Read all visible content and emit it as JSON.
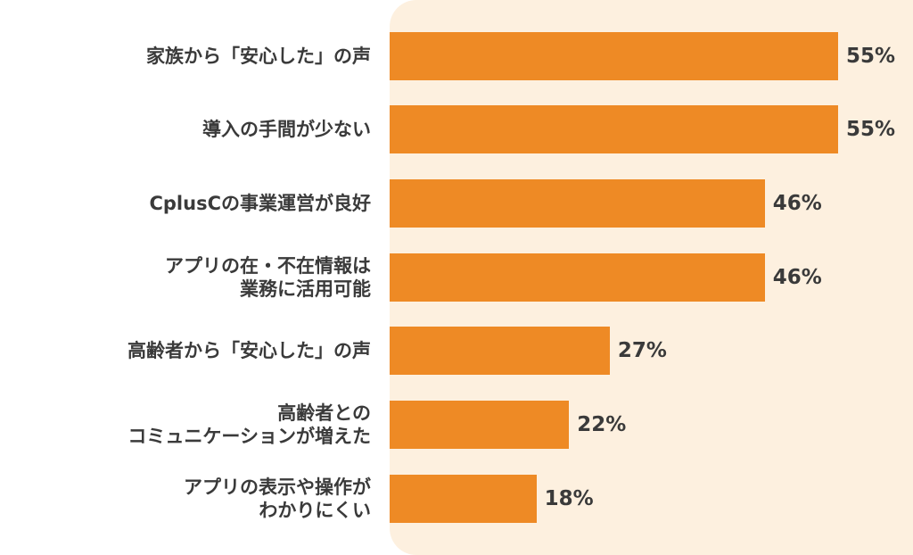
{
  "chart_data": {
    "type": "bar",
    "orientation": "horizontal",
    "categories": [
      [
        "家族から「安心した」の声"
      ],
      [
        "導入の手間が少ない"
      ],
      [
        "CplusCの事業運営が良好"
      ],
      [
        "アプリの在・不在情報は",
        "業務に活用可能"
      ],
      [
        "高齢者から「安心した」の声"
      ],
      [
        "高齢者との",
        "コミュニケーションが増えた"
      ],
      [
        "アプリの表示や操作が",
        "わかりにくい"
      ]
    ],
    "values": [
      55,
      55,
      46,
      46,
      27,
      22,
      18
    ],
    "value_labels": [
      "55%",
      "55%",
      "46%",
      "46%",
      "27%",
      "22%",
      "18%"
    ],
    "xlim": [
      0,
      55
    ],
    "bar_color": "#ee8a25",
    "plot_background": "#fdf0df",
    "grid": false,
    "legend": "none"
  }
}
